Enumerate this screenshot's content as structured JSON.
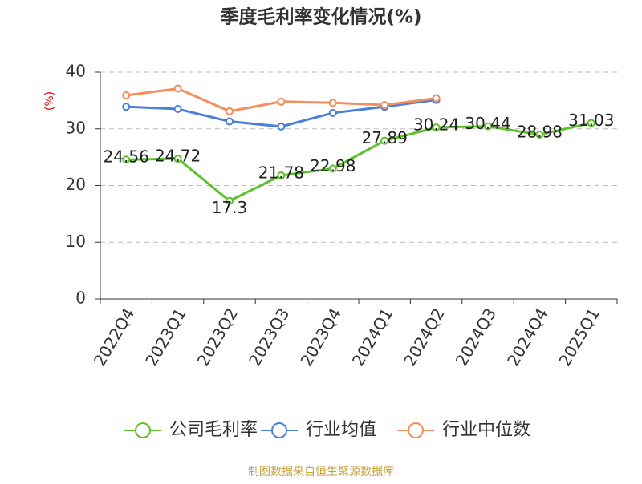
{
  "chart_data": {
    "type": "line",
    "title": "季度毛利率变化情况(%)",
    "y_label": "(%)",
    "source": "制图数据来自恒生聚源数据库",
    "categories": [
      "2022Q4",
      "2023Q1",
      "2023Q2",
      "2023Q3",
      "2023Q4",
      "2024Q1",
      "2024Q2",
      "2024Q3",
      "2024Q4",
      "2025Q1"
    ],
    "series": [
      {
        "name": "公司毛利率",
        "color": "#5cc22a",
        "show_labels": true,
        "values": [
          24.56,
          24.72,
          17.3,
          21.78,
          22.98,
          27.89,
          30.24,
          30.44,
          28.98,
          31.03
        ]
      },
      {
        "name": "行业均值",
        "color": "#4a7fdb",
        "show_labels": false,
        "values": [
          33.9,
          33.5,
          31.3,
          30.4,
          32.8,
          33.9,
          35.1,
          null,
          null,
          null
        ]
      },
      {
        "name": "行业中位数",
        "color": "#f58d5a",
        "show_labels": false,
        "values": [
          35.9,
          37.1,
          33.1,
          34.8,
          34.6,
          34.2,
          35.4,
          null,
          null,
          null
        ]
      }
    ],
    "ylim": [
      0,
      40
    ],
    "yticks": [
      0,
      10,
      20,
      30,
      40
    ],
    "grid": true,
    "legend": "bottom"
  }
}
